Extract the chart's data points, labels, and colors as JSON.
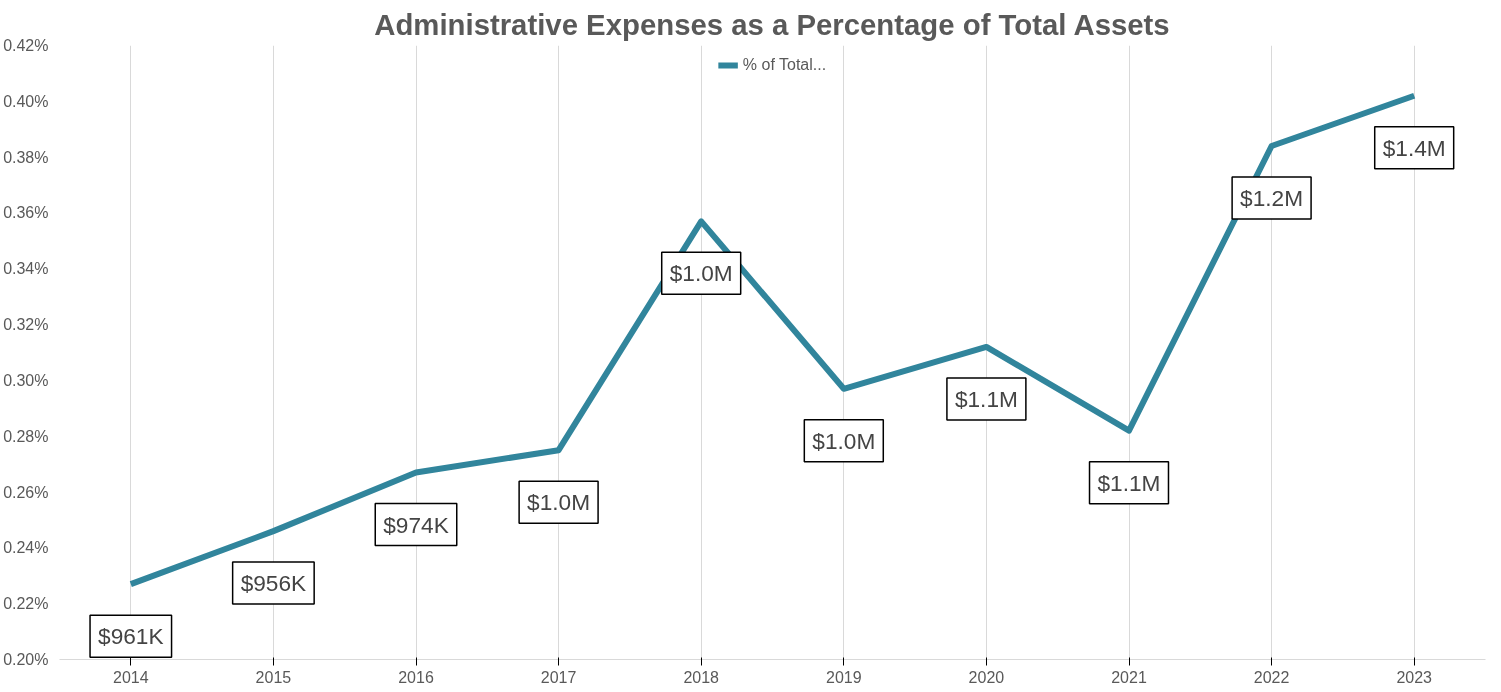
{
  "chart_data": {
    "type": "line",
    "title": "Administrative Expenses as a Percentage of Total Assets",
    "categories": [
      "2014",
      "2015",
      "2016",
      "2017",
      "2018",
      "2019",
      "2020",
      "2021",
      "2022",
      "2023"
    ],
    "series": [
      {
        "name": "% of Total...",
        "color": "#31859c",
        "values": [
          0.227,
          0.246,
          0.267,
          0.275,
          0.357,
          0.297,
          0.312,
          0.282,
          0.384,
          0.402
        ]
      }
    ],
    "annotations": [
      "$961K",
      "$956K",
      "$974K",
      "$1.0M",
      "$1.0M",
      "$1.0M",
      "$1.1M",
      "$1.1M",
      "$1.2M",
      "$1.4M"
    ],
    "ylim": [
      0.2,
      0.42
    ],
    "yticks": [
      {
        "value": 0.2,
        "label": "0.20%"
      },
      {
        "value": 0.22,
        "label": "0.22%"
      },
      {
        "value": 0.24,
        "label": "0.24%"
      },
      {
        "value": 0.26,
        "label": "0.26%"
      },
      {
        "value": 0.28,
        "label": "0.28%"
      },
      {
        "value": 0.3,
        "label": "0.30%"
      },
      {
        "value": 0.32,
        "label": "0.32%"
      },
      {
        "value": 0.34,
        "label": "0.34%"
      },
      {
        "value": 0.36,
        "label": "0.36%"
      },
      {
        "value": 0.38,
        "label": "0.38%"
      },
      {
        "value": 0.4,
        "label": "0.40%"
      },
      {
        "value": 0.42,
        "label": "0.42%"
      }
    ],
    "grid": "x",
    "legend": "top",
    "marker": "none",
    "line_style": "solid"
  }
}
